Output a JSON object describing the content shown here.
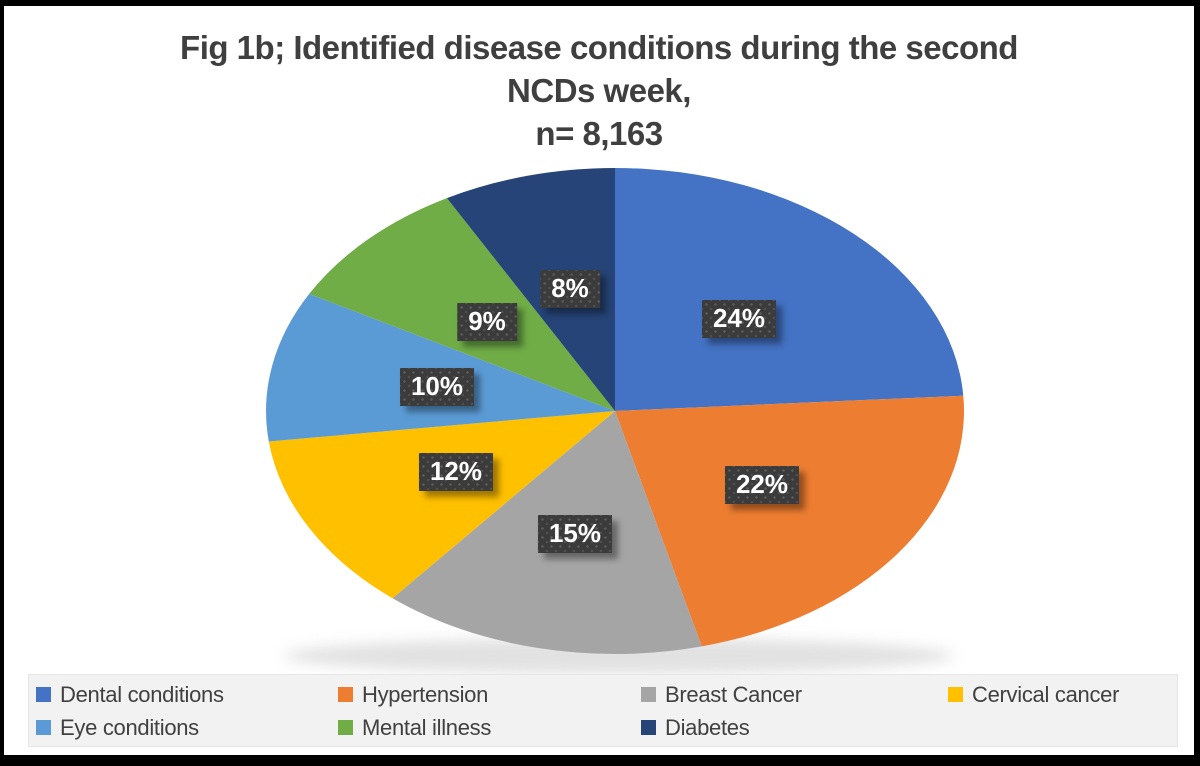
{
  "title": {
    "line1": "Fig 1b; Identified disease conditions during the second",
    "line2": "NCDs week,",
    "line3": "n= 8,163"
  },
  "chart_data": {
    "type": "pie",
    "title": "Fig 1b; Identified disease conditions during the second NCDs week, n= 8,163",
    "sample_size_text": "n= 8,163",
    "start_angle_deg": 0,
    "direction": "clockwise",
    "legend_position": "bottom",
    "data_label_style": {
      "bg": "#3B3B3B",
      "text_color": "#FFFFFF"
    },
    "slices": [
      {
        "label": "Dental conditions",
        "value_pct": 24,
        "data_label": "24%",
        "color": "#4472C4"
      },
      {
        "label": "Hypertension",
        "value_pct": 22,
        "data_label": "22%",
        "color": "#ED7D31"
      },
      {
        "label": "Breast Cancer",
        "value_pct": 15,
        "data_label": "15%",
        "color": "#A5A5A5"
      },
      {
        "label": "Cervical cancer",
        "value_pct": 12,
        "data_label": "12%",
        "color": "#FFC000"
      },
      {
        "label": "Eye conditions",
        "value_pct": 10,
        "data_label": "10%",
        "color": "#5B9BD5"
      },
      {
        "label": "Mental illness",
        "value_pct": 9,
        "data_label": "9%",
        "color": "#70AD47"
      },
      {
        "label": "Diabetes",
        "value_pct": 8,
        "data_label": "8%",
        "color": "#264478"
      }
    ]
  },
  "legend": {
    "row1_count": 4
  }
}
